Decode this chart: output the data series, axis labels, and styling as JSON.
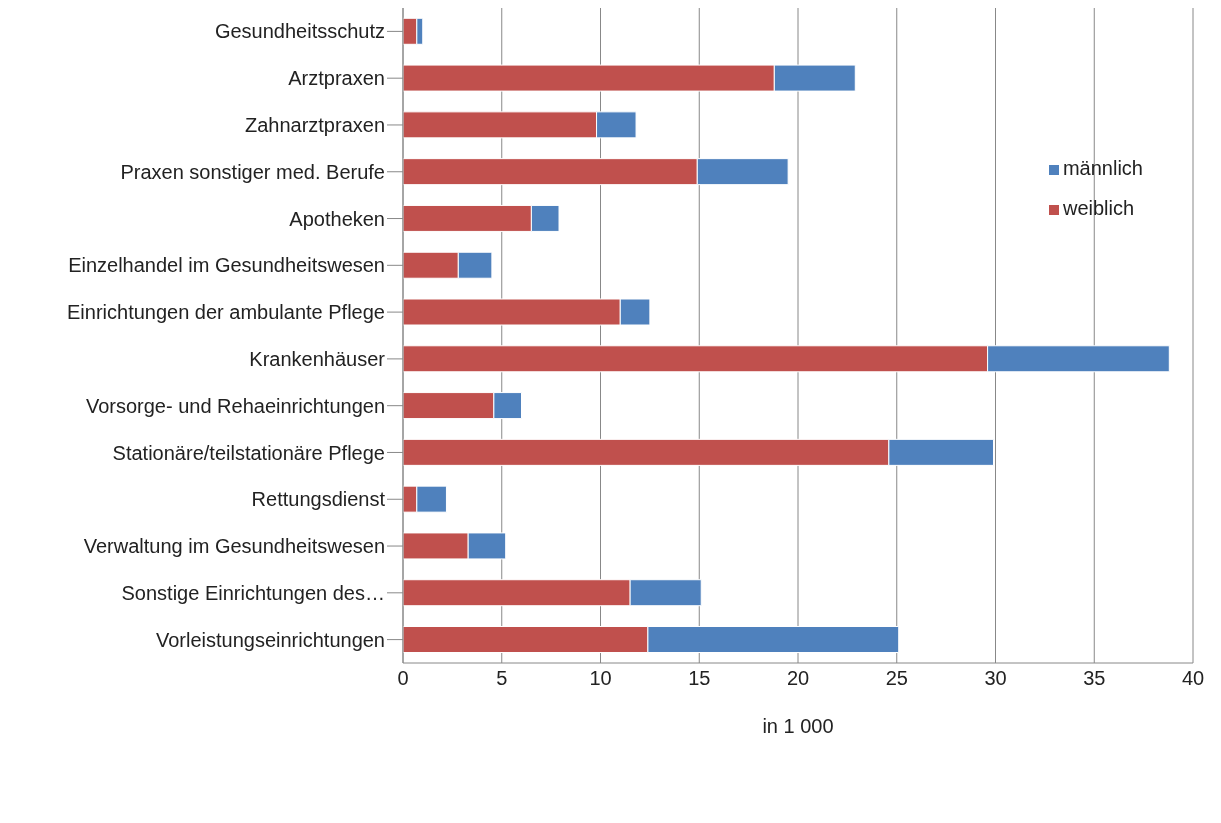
{
  "chart_data": {
    "type": "bar",
    "orientation": "horizontal",
    "stacked": true,
    "xlabel": "in 1 000",
    "categories": [
      "Gesundheitsschutz",
      "Arztpraxen",
      "Zahnarztpraxen",
      "Praxen sonstiger med. Berufe",
      "Apotheken",
      "Einzelhandel im Gesundheitswesen",
      "Einrichtungen der ambulante Pflege",
      "Krankenhäuser",
      "Vorsorge- und Rehaeinrichtungen",
      "Stationäre/teilstationäre Pflege",
      "Rettungsdienst",
      "Verwaltung im Gesundheitswesen",
      "Sonstige Einrichtungen des…",
      "Vorleistungseinrichtungen"
    ],
    "series": [
      {
        "name": "weiblich",
        "color": "#c0504d",
        "values": [
          0.7,
          18.8,
          9.8,
          14.9,
          6.5,
          2.8,
          11.0,
          29.6,
          4.6,
          24.6,
          0.7,
          3.3,
          11.5,
          12.4
        ]
      },
      {
        "name": "männlich",
        "color": "#4f81bd",
        "values": [
          0.3,
          4.1,
          2.0,
          4.6,
          1.4,
          1.7,
          1.5,
          9.2,
          1.4,
          5.3,
          1.5,
          1.9,
          3.6,
          12.7
        ]
      }
    ],
    "xlim": [
      0,
      40
    ],
    "xticks": [
      0,
      5,
      10,
      15,
      20,
      25,
      30,
      35,
      40
    ],
    "grid": "x",
    "legend": "top right"
  }
}
